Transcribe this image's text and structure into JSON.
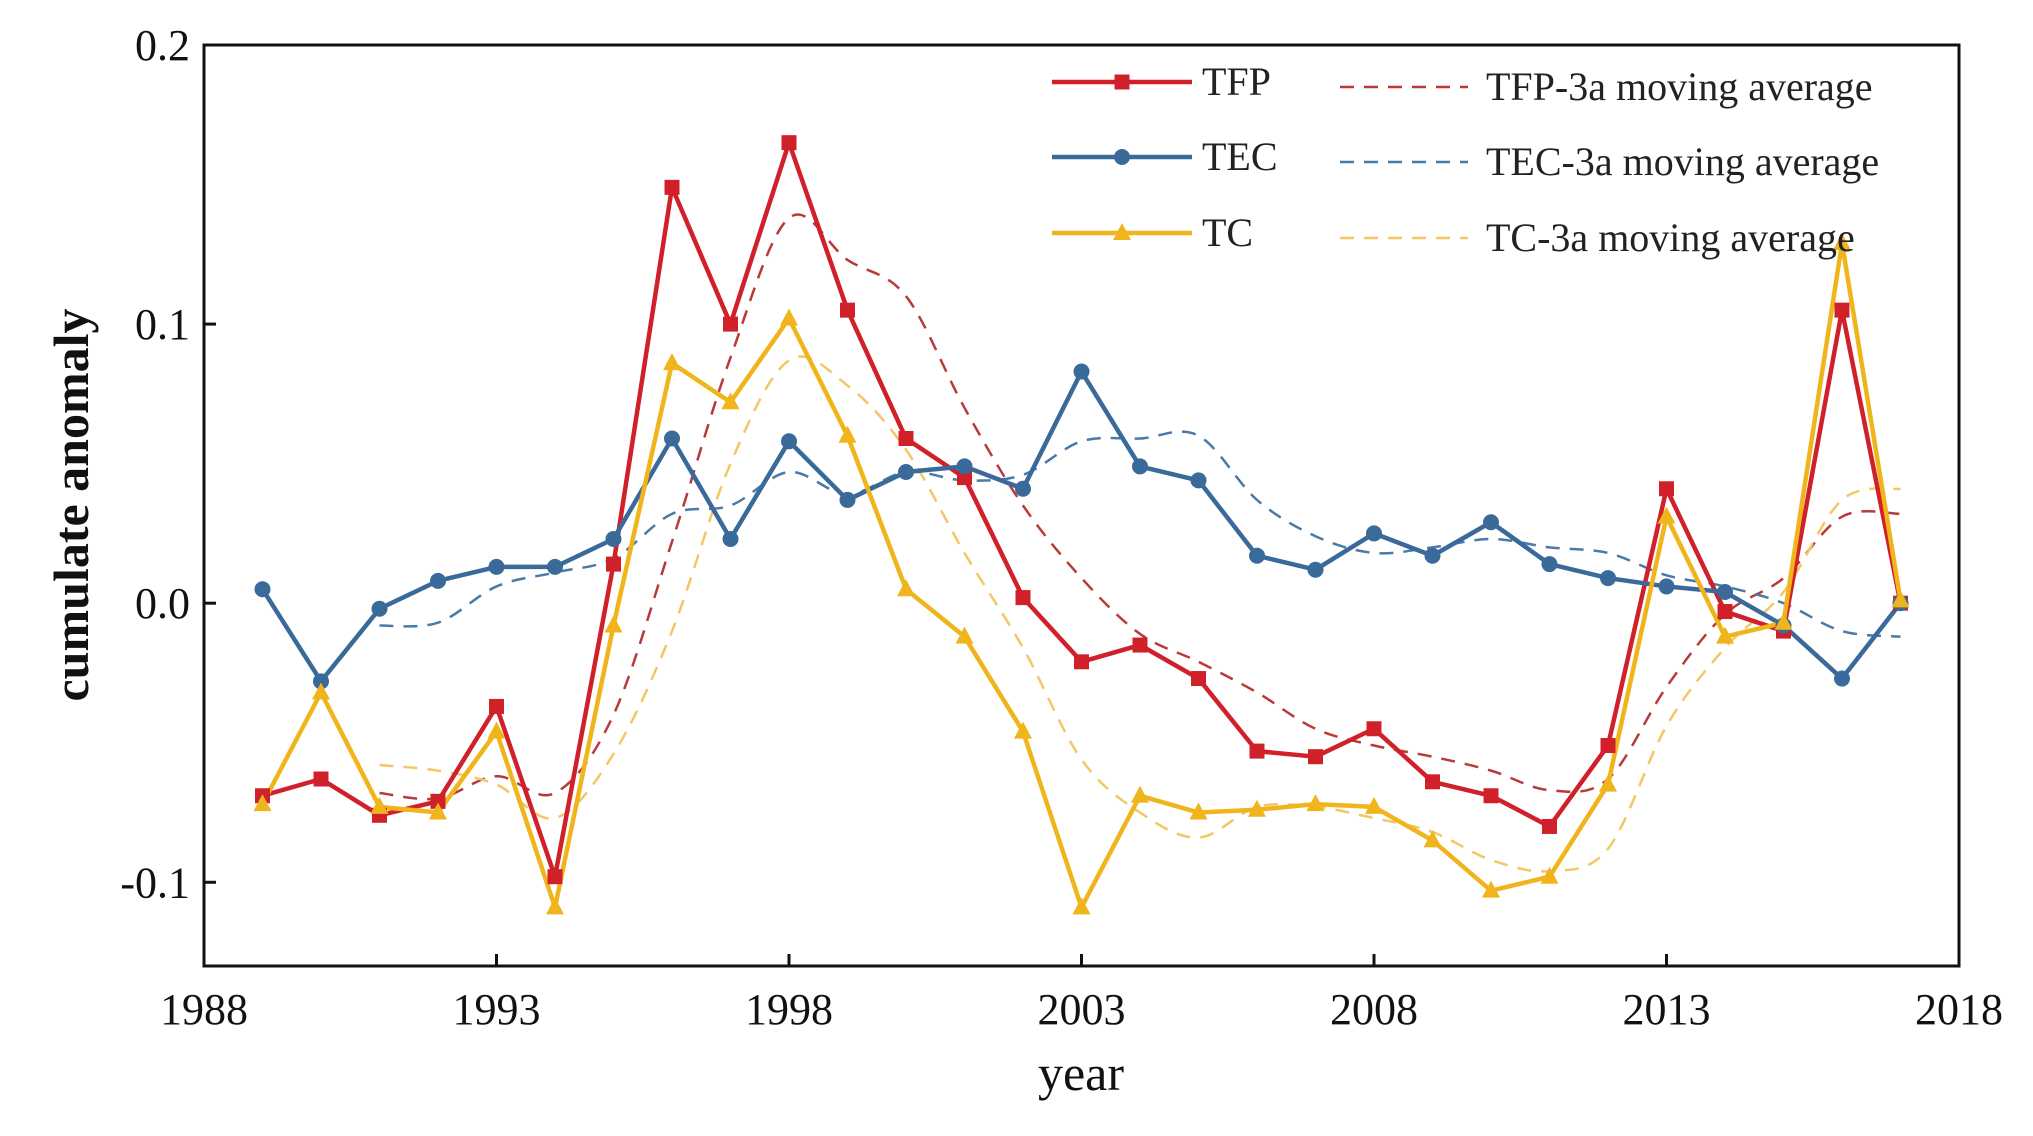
{
  "chart_data": {
    "type": "line",
    "title": "",
    "xlabel": "year",
    "ylabel": "cumulate anomaly",
    "xlim": [
      1988,
      2018
    ],
    "ylim": [
      -0.13,
      0.2
    ],
    "xticks": [
      1988,
      1993,
      1998,
      2003,
      2008,
      2013,
      2018
    ],
    "xtick_labels": [
      "1988",
      "1993",
      "1998",
      "2003",
      "2008",
      "2013",
      "2018"
    ],
    "yticks": [
      -0.1,
      0.0,
      0.1,
      0.2
    ],
    "ytick_labels": [
      "-0.1",
      "0.0",
      "0.1",
      "0.2"
    ],
    "legend_position": "top-right",
    "x": [
      1989,
      1990,
      1991,
      1992,
      1993,
      1994,
      1995,
      1996,
      1997,
      1998,
      1999,
      2000,
      2001,
      2002,
      2003,
      2004,
      2005,
      2006,
      2007,
      2008,
      2009,
      2010,
      2011,
      2012,
      2013,
      2014,
      2015,
      2016,
      2017
    ],
    "series": [
      {
        "name": "TFP",
        "style": "solid",
        "marker": "square",
        "color": "#d0202a",
        "values": [
          -0.069,
          -0.063,
          -0.076,
          -0.071,
          -0.037,
          -0.098,
          0.014,
          0.149,
          0.1,
          0.165,
          0.105,
          0.059,
          0.045,
          0.002,
          -0.021,
          -0.015,
          -0.027,
          -0.053,
          -0.055,
          -0.045,
          -0.064,
          -0.069,
          -0.08,
          -0.051,
          0.041,
          -0.003,
          -0.01,
          0.105,
          0.0
        ]
      },
      {
        "name": "TEC",
        "style": "solid",
        "marker": "circle",
        "color": "#3a6a9a",
        "values": [
          0.005,
          -0.028,
          -0.002,
          0.008,
          0.013,
          0.013,
          0.023,
          0.059,
          0.023,
          0.058,
          0.037,
          0.047,
          0.049,
          0.041,
          0.083,
          0.049,
          0.044,
          0.017,
          0.012,
          0.025,
          0.017,
          0.029,
          0.014,
          0.009,
          0.006,
          0.004,
          -0.008,
          -0.027,
          0.0
        ]
      },
      {
        "name": "TC",
        "style": "solid",
        "marker": "triangle",
        "color": "#f0b51c",
        "values": [
          -0.072,
          -0.032,
          -0.073,
          -0.075,
          -0.046,
          -0.109,
          -0.008,
          0.086,
          0.072,
          0.102,
          0.06,
          0.005,
          -0.012,
          -0.046,
          -0.109,
          -0.069,
          -0.075,
          -0.074,
          -0.072,
          -0.073,
          -0.085,
          -0.103,
          -0.098,
          -0.065,
          0.031,
          -0.012,
          -0.007,
          0.129,
          0.001
        ]
      },
      {
        "name": "TFP-3a moving average",
        "style": "dashed",
        "color": "#b83a3a",
        "values": [
          null,
          null,
          -0.068,
          -0.07,
          -0.062,
          -0.068,
          -0.04,
          0.022,
          0.088,
          0.138,
          0.123,
          0.11,
          0.07,
          0.035,
          0.009,
          -0.011,
          -0.021,
          -0.032,
          -0.045,
          -0.051,
          -0.055,
          -0.06,
          -0.067,
          -0.063,
          -0.03,
          -0.004,
          0.009,
          0.031,
          0.032
        ]
      },
      {
        "name": "TEC-3a moving average",
        "style": "dashed",
        "color": "#4a7aa8",
        "values": [
          null,
          null,
          -0.008,
          -0.007,
          0.006,
          0.011,
          0.016,
          0.032,
          0.035,
          0.047,
          0.039,
          0.047,
          0.044,
          0.046,
          0.058,
          0.059,
          0.06,
          0.037,
          0.024,
          0.018,
          0.02,
          0.023,
          0.02,
          0.018,
          0.01,
          0.006,
          0.0,
          -0.01,
          -0.012
        ]
      },
      {
        "name": "TC-3a moving average",
        "style": "dashed",
        "color": "#f2c766",
        "values": [
          null,
          null,
          -0.058,
          -0.06,
          -0.065,
          -0.077,
          -0.054,
          -0.01,
          0.05,
          0.087,
          0.078,
          0.055,
          0.018,
          -0.016,
          -0.056,
          -0.075,
          -0.084,
          -0.073,
          -0.073,
          -0.077,
          -0.082,
          -0.092,
          -0.096,
          -0.088,
          -0.044,
          -0.016,
          0.004,
          0.037,
          0.041
        ]
      }
    ]
  }
}
